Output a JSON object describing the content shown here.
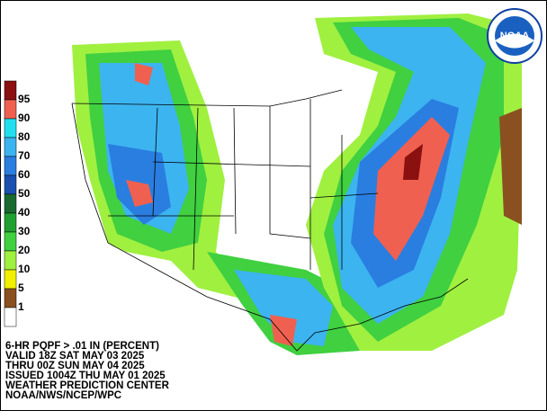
{
  "legend": {
    "labels": [
      "95",
      "90",
      "80",
      "70",
      "60",
      "50",
      "40",
      "30",
      "20",
      "10",
      "5",
      "1"
    ],
    "colors": [
      "#8b1010",
      "#f06050",
      "#20e0f0",
      "#3cb4f0",
      "#2a7ee0",
      "#1a50b0",
      "#1a6a30",
      "#20a030",
      "#40d040",
      "#a0f040",
      "#f0f000",
      "#8a5020",
      "#ffffff"
    ]
  },
  "caption": [
    "6-HR PQPF > .01 IN (PERCENT)",
    "VALID 18Z SAT MAY 03 2025",
    "THRU 00Z SUN MAY 04 2025",
    "ISSUED 1004Z THU MAY 01 2025",
    "WEATHER PREDICTION CENTER",
    "NOAA/NWS/NCEP/WPC"
  ],
  "logo": "NOAA"
}
